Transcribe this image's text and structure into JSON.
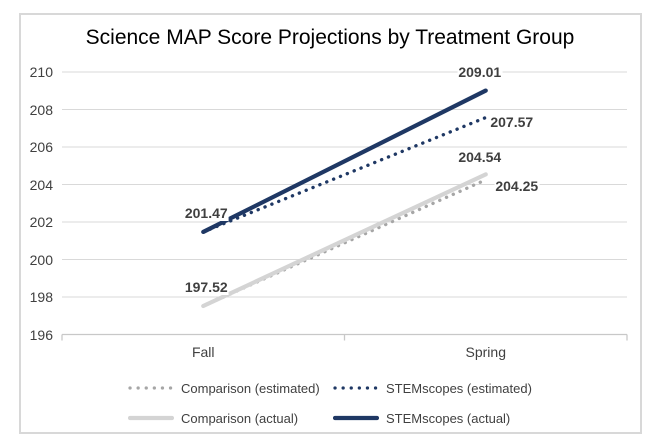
{
  "chart_data": {
    "type": "line",
    "title": "Science MAP Score Projections by Treatment Group",
    "categories": [
      "Fall",
      "Spring"
    ],
    "series": [
      {
        "name": "Comparison (estimated)",
        "values": [
          197.52,
          204.25
        ],
        "color": "#a6a6a6",
        "line_style": "dotted"
      },
      {
        "name": "STEMscopes (estimated)",
        "values": [
          201.47,
          207.57
        ],
        "color": "#1f3864",
        "line_style": "dotted"
      },
      {
        "name": "Comparison (actual)",
        "values": [
          197.52,
          204.54
        ],
        "color": "#d4d4d4",
        "line_style": "solid"
      },
      {
        "name": "STEMscopes (actual)",
        "values": [
          201.47,
          209.01
        ],
        "color": "#1f3864",
        "line_style": "solid"
      }
    ],
    "data_labels": [
      "201.47",
      "197.52",
      "209.01",
      "207.57",
      "204.54",
      "204.25"
    ],
    "yticks": [
      "196",
      "198",
      "200",
      "202",
      "204",
      "206",
      "208",
      "210"
    ],
    "ylim": [
      196,
      210
    ],
    "xlabel": "",
    "ylabel": "",
    "grid": true,
    "legend_position": "bottom",
    "grid_color": "#d9d9d9",
    "axis_color": "#c8c8c8"
  }
}
